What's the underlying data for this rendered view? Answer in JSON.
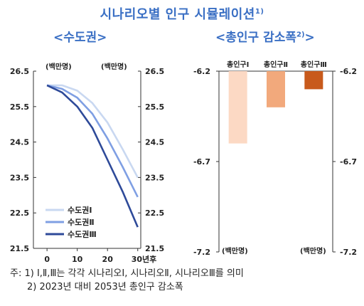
{
  "title": "시나리오별 인구 시뮬레이션",
  "title_sup": "1)",
  "left_subtitle": "<수도권>",
  "right_subtitle": "<총인구 감소폭",
  "right_subtitle_sup": "2)",
  "right_subtitle_close": ">",
  "notes": [
    "주: 1) Ⅰ,Ⅱ,Ⅲ는 각각 시나리오Ⅰ, 시나리오Ⅱ, 시나리오Ⅲ를 의미",
    "2) 2023년 대비 2053년 총인구 감소폭"
  ],
  "colors": {
    "title": "#3a6fc4",
    "s1": "#c9d8f1",
    "s2": "#7f9fe3",
    "s3": "#2e4a99",
    "b1": "#fcd9c4",
    "b2": "#f2a97c",
    "b3": "#c85a1c"
  },
  "chart_data": [
    {
      "type": "line",
      "unit_left": "(백만명)",
      "unit_right": "(백만명)",
      "xlabel_suffix": "년후",
      "x_ticks": [
        0,
        10,
        20,
        30
      ],
      "y_ticks": [
        21.5,
        22.5,
        23.5,
        24.5,
        25.5,
        26.5
      ],
      "xlim": [
        -4.5,
        31
      ],
      "ylim": [
        21.5,
        26.5
      ],
      "grid": false,
      "legend_position": "bottom-left",
      "x": [
        0,
        5,
        10,
        15,
        20,
        25,
        30
      ],
      "series": [
        {
          "name": "수도권Ⅰ",
          "color_key": "s1",
          "values": [
            26.1,
            26.1,
            25.95,
            25.6,
            25.05,
            24.3,
            23.5
          ]
        },
        {
          "name": "수도권Ⅱ",
          "color_key": "s2",
          "values": [
            26.1,
            26.0,
            25.75,
            25.3,
            24.6,
            23.8,
            22.95
          ]
        },
        {
          "name": "수도권Ⅲ",
          "color_key": "s3",
          "values": [
            26.1,
            25.9,
            25.5,
            24.9,
            24.0,
            23.1,
            22.1
          ]
        }
      ]
    },
    {
      "type": "bar",
      "unit_left": "(백만명)",
      "unit_right": "(백만명)",
      "categories": [
        "총인구Ⅰ",
        "총인구Ⅱ",
        "총인구Ⅲ"
      ],
      "values": [
        -6.6,
        -6.4,
        -6.3
      ],
      "color_keys": [
        "b1",
        "b2",
        "b3"
      ],
      "y_ticks": [
        -6.2,
        -6.7,
        -7.2
      ],
      "ylim": [
        -7.2,
        -6.2
      ],
      "grid": false
    }
  ]
}
